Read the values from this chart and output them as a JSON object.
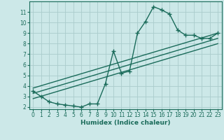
{
  "xlabel": "Humidex (Indice chaleur)",
  "bg_color": "#cce8e8",
  "grid_color": "#aacccc",
  "line_color": "#1a6b5a",
  "main_series_x": [
    0,
    1,
    2,
    3,
    4,
    5,
    6,
    7,
    8,
    9,
    10,
    11,
    12,
    13,
    14,
    15,
    16,
    17,
    18,
    19,
    20,
    21,
    22,
    23
  ],
  "main_series_y": [
    3.5,
    3.0,
    2.5,
    2.3,
    2.2,
    2.1,
    2.0,
    2.3,
    2.3,
    4.2,
    7.3,
    5.2,
    5.4,
    9.0,
    10.1,
    11.5,
    11.2,
    10.8,
    9.3,
    8.8,
    8.8,
    8.5,
    8.5,
    9.0
  ],
  "reg_line1_x": [
    0,
    23
  ],
  "reg_line1_y": [
    2.8,
    8.0
  ],
  "reg_line2_x": [
    0,
    23
  ],
  "reg_line2_y": [
    3.3,
    8.5
  ],
  "reg_line3_x": [
    0,
    23
  ],
  "reg_line3_y": [
    3.8,
    9.0
  ],
  "xlim": [
    -0.5,
    23.5
  ],
  "ylim": [
    1.8,
    12.0
  ],
  "yticks": [
    2,
    3,
    4,
    5,
    6,
    7,
    8,
    9,
    10,
    11
  ],
  "xticks": [
    0,
    1,
    2,
    3,
    4,
    5,
    6,
    7,
    8,
    9,
    10,
    11,
    12,
    13,
    14,
    15,
    16,
    17,
    18,
    19,
    20,
    21,
    22,
    23
  ],
  "marker": "+",
  "markersize": 4,
  "linewidth": 1.0,
  "tick_labelsize": 5.5,
  "xlabel_fontsize": 6.5
}
